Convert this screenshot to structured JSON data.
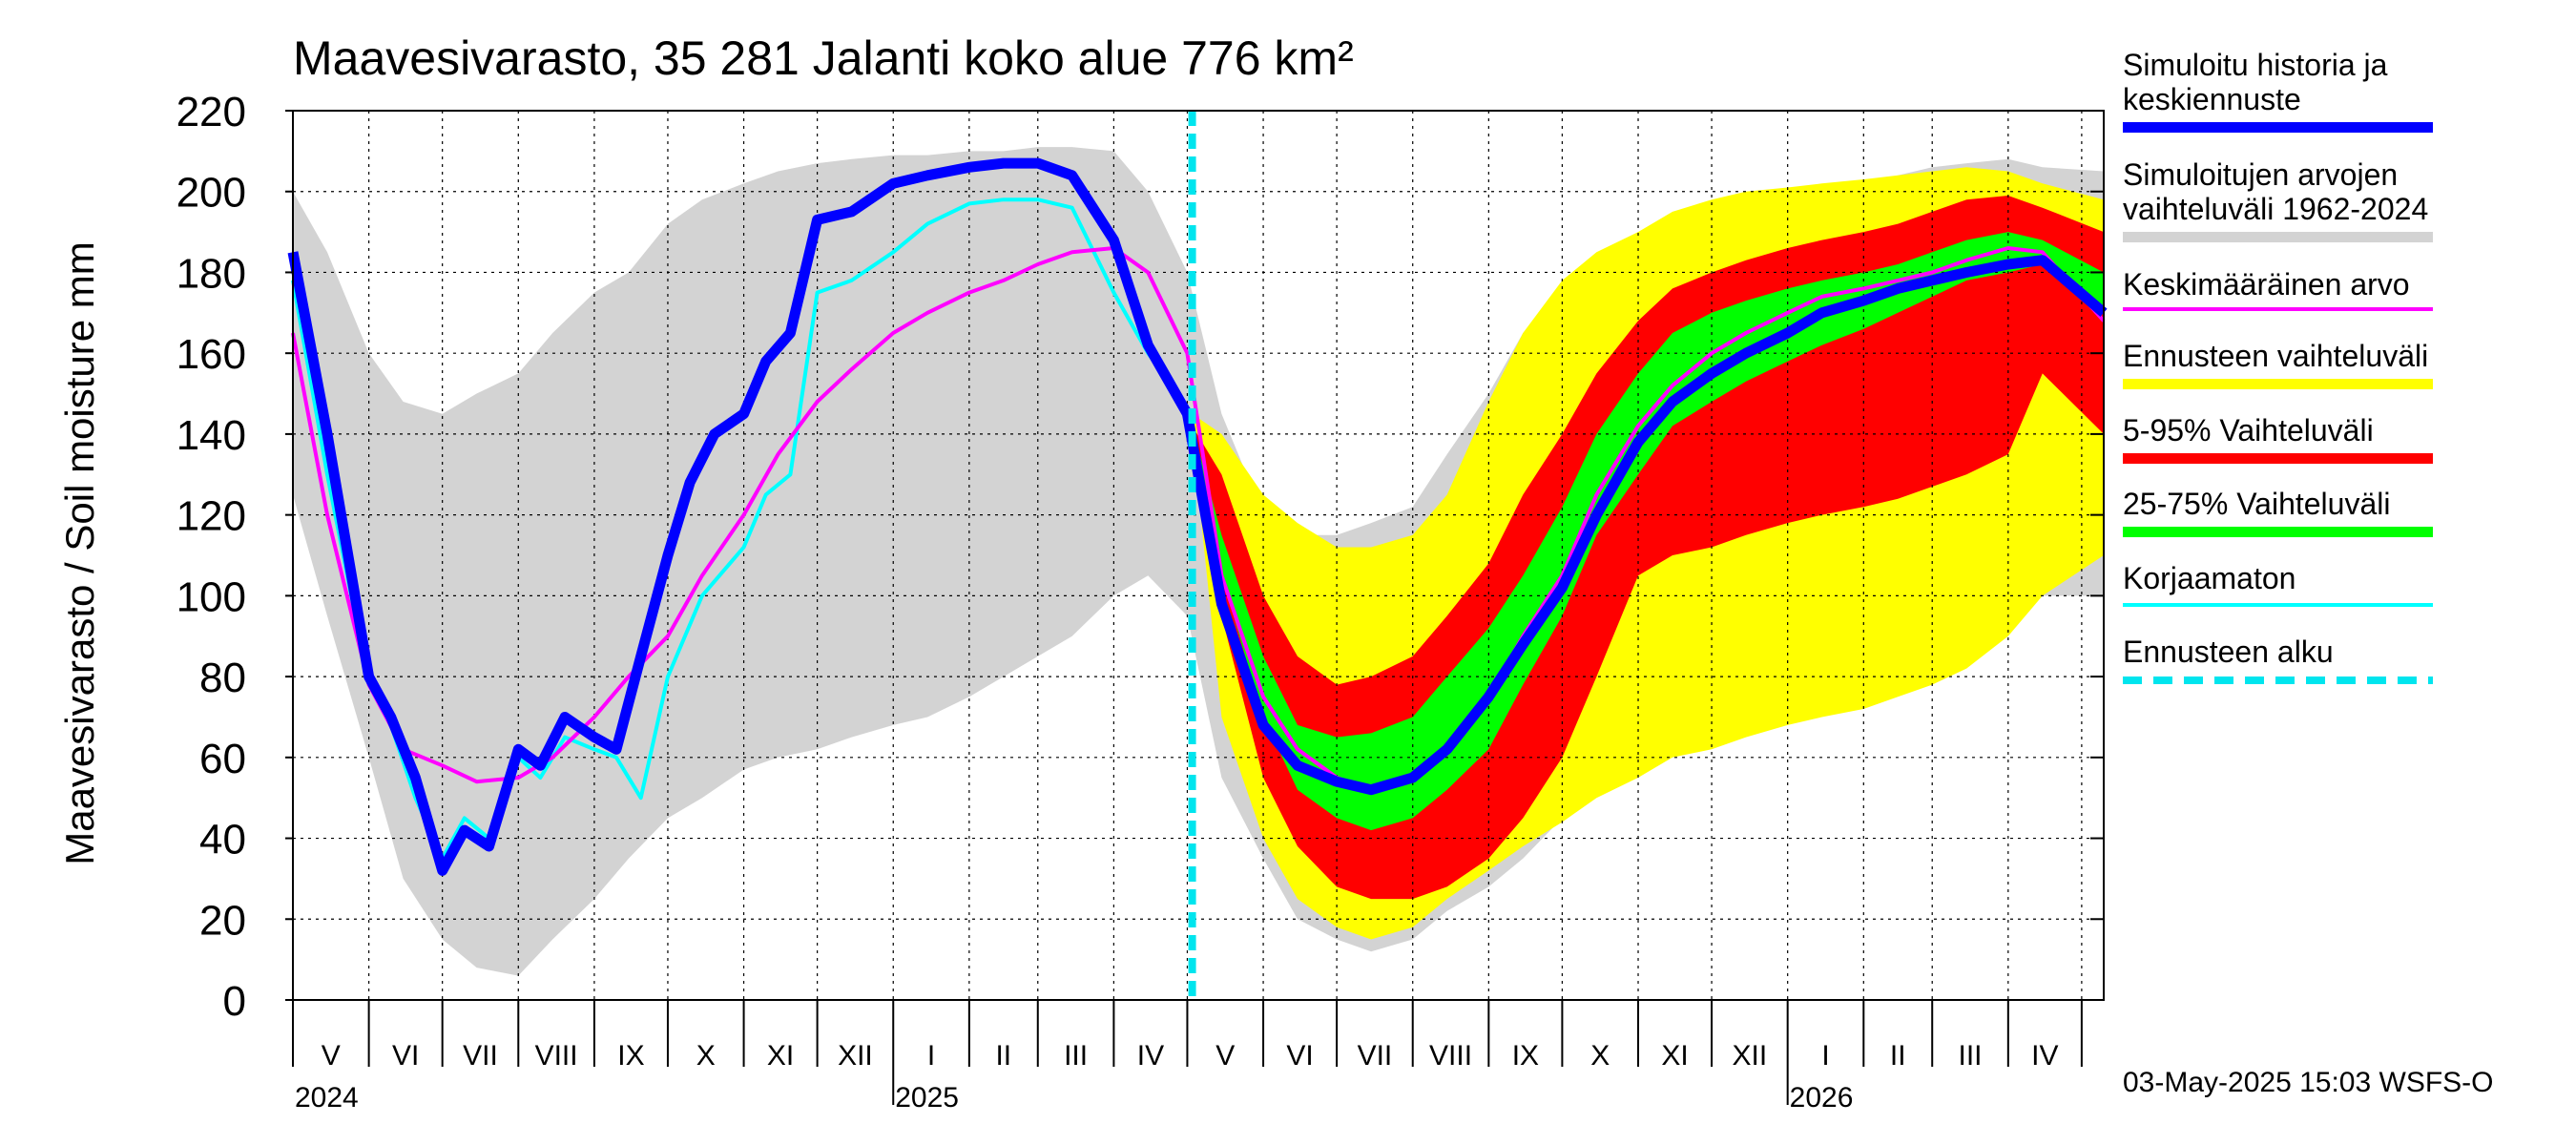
{
  "chart_data": {
    "type": "area",
    "title": "Maavesivarasto, 35 281 Jalanti koko alue 776 km²",
    "ylabel": "Maavesivarasto / Soil moisture   mm",
    "ylim": [
      0,
      220
    ],
    "yticks": [
      0,
      20,
      40,
      60,
      80,
      100,
      120,
      140,
      160,
      180,
      200,
      220
    ],
    "xlim": [
      "2024-05-01",
      "2026-05-10"
    ],
    "grid": true,
    "month_labels": [
      "V",
      "VI",
      "VII",
      "VIII",
      "IX",
      "X",
      "XI",
      "XII",
      "I",
      "II",
      "III",
      "IV",
      "V",
      "VI",
      "VII",
      "VIII",
      "IX",
      "X",
      "XI",
      "XII",
      "I",
      "II",
      "III",
      "IV"
    ],
    "year_labels": [
      "2024",
      "2025",
      "2026"
    ],
    "forecast_start": "2025-05-03",
    "series": [
      {
        "name": "Simuloitujen arvojen vaihteluväli 1962-2024",
        "kind": "band",
        "color": "#d3d3d3",
        "x": [
          "2024-05-01",
          "2024-05-15",
          "2024-06-01",
          "2024-06-15",
          "2024-07-01",
          "2024-07-15",
          "2024-08-01",
          "2024-08-15",
          "2024-09-01",
          "2024-09-15",
          "2024-10-01",
          "2024-10-15",
          "2024-11-01",
          "2024-11-15",
          "2024-12-01",
          "2024-12-15",
          "2025-01-01",
          "2025-01-15",
          "2025-02-01",
          "2025-02-15",
          "2025-03-01",
          "2025-03-15",
          "2025-04-01",
          "2025-04-15",
          "2025-05-01",
          "2025-05-15",
          "2025-06-01",
          "2025-06-15",
          "2025-07-01",
          "2025-07-15",
          "2025-08-01",
          "2025-08-15",
          "2025-09-01",
          "2025-09-15",
          "2025-10-01",
          "2025-10-15",
          "2025-11-01",
          "2025-11-15",
          "2025-12-01",
          "2025-12-15",
          "2026-01-01",
          "2026-01-15",
          "2026-02-01",
          "2026-02-15",
          "2026-03-01",
          "2026-03-15",
          "2026-04-01",
          "2026-04-15",
          "2026-05-10"
        ],
        "low": [
          125,
          95,
          60,
          30,
          15,
          8,
          6,
          15,
          25,
          35,
          45,
          50,
          57,
          60,
          62,
          65,
          68,
          70,
          75,
          80,
          85,
          90,
          100,
          105,
          95,
          55,
          35,
          20,
          15,
          12,
          15,
          22,
          28,
          35,
          45,
          55,
          65,
          70,
          74,
          77,
          80,
          82,
          85,
          88,
          92,
          95,
          100,
          100,
          100
        ],
        "high": [
          200,
          185,
          160,
          148,
          145,
          150,
          155,
          165,
          175,
          180,
          192,
          198,
          202,
          205,
          207,
          208,
          209,
          209,
          210,
          210,
          211,
          211,
          210,
          200,
          180,
          145,
          120,
          115,
          115,
          118,
          122,
          135,
          150,
          165,
          175,
          182,
          186,
          190,
          193,
          196,
          198,
          200,
          202,
          204,
          206,
          207,
          208,
          206,
          205
        ]
      },
      {
        "name": "Ennusteen vaihteluväli",
        "kind": "band",
        "color": "#ffff00",
        "x": [
          "2025-05-03",
          "2025-05-15",
          "2025-06-01",
          "2025-06-15",
          "2025-07-01",
          "2025-07-15",
          "2025-08-01",
          "2025-08-15",
          "2025-09-01",
          "2025-09-15",
          "2025-10-01",
          "2025-10-15",
          "2025-11-01",
          "2025-11-15",
          "2025-12-01",
          "2025-12-15",
          "2026-01-01",
          "2026-01-15",
          "2026-02-01",
          "2026-02-15",
          "2026-03-01",
          "2026-03-15",
          "2026-04-01",
          "2026-04-15",
          "2026-05-10"
        ],
        "low": [
          140,
          70,
          40,
          25,
          18,
          15,
          18,
          25,
          32,
          38,
          44,
          50,
          55,
          60,
          62,
          65,
          68,
          70,
          72,
          75,
          78,
          82,
          90,
          100,
          110
        ],
        "high": [
          145,
          140,
          125,
          118,
          112,
          112,
          115,
          125,
          148,
          165,
          178,
          185,
          190,
          195,
          198,
          200,
          201,
          202,
          203,
          204,
          205,
          206,
          205,
          202,
          198
        ]
      },
      {
        "name": "5-95% Vaihteluväli",
        "kind": "band",
        "color": "#ff0000",
        "x": [
          "2025-05-03",
          "2025-05-15",
          "2025-06-01",
          "2025-06-15",
          "2025-07-01",
          "2025-07-15",
          "2025-08-01",
          "2025-08-15",
          "2025-09-01",
          "2025-09-15",
          "2025-10-01",
          "2025-10-15",
          "2025-11-01",
          "2025-11-15",
          "2025-12-01",
          "2025-12-15",
          "2026-01-01",
          "2026-01-15",
          "2026-02-01",
          "2026-02-15",
          "2026-03-01",
          "2026-03-15",
          "2026-04-01",
          "2026-04-15",
          "2026-05-10"
        ],
        "low": [
          140,
          95,
          55,
          38,
          28,
          25,
          25,
          28,
          35,
          45,
          60,
          80,
          105,
          110,
          112,
          115,
          118,
          120,
          122,
          124,
          127,
          130,
          135,
          155,
          140
        ],
        "high": [
          142,
          130,
          100,
          85,
          78,
          80,
          85,
          95,
          108,
          125,
          140,
          155,
          168,
          176,
          180,
          183,
          186,
          188,
          190,
          192,
          195,
          198,
          199,
          196,
          190
        ]
      },
      {
        "name": "25-75% Vaihteluväli",
        "kind": "band",
        "color": "#00ff00",
        "x": [
          "2025-05-03",
          "2025-05-15",
          "2025-06-01",
          "2025-06-15",
          "2025-07-01",
          "2025-07-15",
          "2025-08-01",
          "2025-08-15",
          "2025-09-01",
          "2025-09-15",
          "2025-10-01",
          "2025-10-15",
          "2025-11-01",
          "2025-11-15",
          "2025-12-01",
          "2025-12-15",
          "2026-01-01",
          "2026-01-15",
          "2026-02-01",
          "2026-02-15",
          "2026-03-01",
          "2026-03-15",
          "2026-04-01",
          "2026-04-15",
          "2026-05-10"
        ],
        "low": [
          140,
          105,
          70,
          52,
          45,
          42,
          45,
          52,
          62,
          78,
          95,
          115,
          130,
          142,
          148,
          153,
          158,
          162,
          166,
          170,
          174,
          178,
          180,
          182,
          170
        ],
        "high": [
          142,
          115,
          85,
          68,
          65,
          66,
          70,
          80,
          92,
          105,
          122,
          140,
          155,
          165,
          170,
          173,
          176,
          178,
          180,
          182,
          185,
          188,
          190,
          188,
          180
        ]
      },
      {
        "name": "Korjaamaton",
        "kind": "line",
        "color": "#00ffff",
        "x": [
          "2024-05-01",
          "2024-05-15",
          "2024-06-01",
          "2024-06-10",
          "2024-06-20",
          "2024-07-01",
          "2024-07-10",
          "2024-07-20",
          "2024-08-01",
          "2024-08-10",
          "2024-08-20",
          "2024-09-01",
          "2024-09-10",
          "2024-09-20",
          "2024-10-01",
          "2024-10-15",
          "2024-11-01",
          "2024-11-10",
          "2024-11-20",
          "2024-12-01",
          "2024-12-15",
          "2025-01-01",
          "2025-01-15",
          "2025-02-01",
          "2025-02-15",
          "2025-03-01",
          "2025-03-15",
          "2025-04-01",
          "2025-04-15",
          "2025-05-03"
        ],
        "values": [
          178,
          130,
          78,
          68,
          50,
          35,
          45,
          40,
          60,
          55,
          65,
          62,
          60,
          50,
          80,
          100,
          112,
          125,
          130,
          175,
          178,
          185,
          192,
          197,
          198,
          198,
          196,
          175,
          160,
          145
        ]
      },
      {
        "name": "Keskimääräinen arvo",
        "kind": "line",
        "color": "#ff00ff",
        "x": [
          "2024-05-01",
          "2024-05-15",
          "2024-06-01",
          "2024-06-15",
          "2024-07-01",
          "2024-07-15",
          "2024-08-01",
          "2024-08-15",
          "2024-09-01",
          "2024-09-15",
          "2024-10-01",
          "2024-10-15",
          "2024-11-01",
          "2024-11-15",
          "2024-12-01",
          "2024-12-15",
          "2025-01-01",
          "2025-01-15",
          "2025-02-01",
          "2025-02-15",
          "2025-03-01",
          "2025-03-15",
          "2025-04-01",
          "2025-04-15",
          "2025-05-01",
          "2025-05-15",
          "2025-06-01",
          "2025-06-15",
          "2025-07-01",
          "2025-07-15",
          "2025-08-01",
          "2025-08-15",
          "2025-09-01",
          "2025-09-15",
          "2025-10-01",
          "2025-10-15",
          "2025-11-01",
          "2025-11-15",
          "2025-12-01",
          "2025-12-15",
          "2026-01-01",
          "2026-01-15",
          "2026-02-01",
          "2026-02-15",
          "2026-03-01",
          "2026-03-15",
          "2026-04-01",
          "2026-04-15",
          "2026-05-10"
        ],
        "values": [
          165,
          120,
          78,
          62,
          58,
          54,
          55,
          60,
          70,
          80,
          90,
          105,
          120,
          135,
          148,
          156,
          165,
          170,
          175,
          178,
          182,
          185,
          186,
          180,
          160,
          105,
          75,
          62,
          55,
          52,
          55,
          62,
          75,
          90,
          105,
          125,
          142,
          152,
          160,
          165,
          170,
          174,
          176,
          178,
          180,
          183,
          186,
          185,
          168
        ]
      },
      {
        "name": "Simuloitu historia ja keskiennuste",
        "kind": "line",
        "color": "#0000ff",
        "x": [
          "2024-05-01",
          "2024-05-15",
          "2024-06-01",
          "2024-06-10",
          "2024-06-20",
          "2024-07-01",
          "2024-07-10",
          "2024-07-20",
          "2024-08-01",
          "2024-08-10",
          "2024-08-20",
          "2024-09-01",
          "2024-09-10",
          "2024-09-20",
          "2024-10-01",
          "2024-10-10",
          "2024-10-20",
          "2024-11-01",
          "2024-11-10",
          "2024-11-20",
          "2024-12-01",
          "2024-12-15",
          "2025-01-01",
          "2025-01-15",
          "2025-02-01",
          "2025-02-15",
          "2025-03-01",
          "2025-03-15",
          "2025-04-01",
          "2025-04-15",
          "2025-05-01",
          "2025-05-15",
          "2025-06-01",
          "2025-06-15",
          "2025-07-01",
          "2025-07-15",
          "2025-08-01",
          "2025-08-15",
          "2025-09-01",
          "2025-09-15",
          "2025-10-01",
          "2025-10-15",
          "2025-11-01",
          "2025-11-15",
          "2025-12-01",
          "2025-12-15",
          "2026-01-01",
          "2026-01-15",
          "2026-02-01",
          "2026-02-15",
          "2026-03-01",
          "2026-03-15",
          "2026-04-01",
          "2026-04-15",
          "2026-05-10"
        ],
        "values": [
          185,
          140,
          80,
          70,
          55,
          32,
          42,
          38,
          62,
          58,
          70,
          65,
          62,
          85,
          110,
          128,
          140,
          145,
          158,
          165,
          193,
          195,
          202,
          204,
          206,
          207,
          207,
          204,
          188,
          162,
          145,
          98,
          68,
          58,
          54,
          52,
          55,
          62,
          75,
          88,
          102,
          120,
          138,
          148,
          155,
          160,
          165,
          170,
          173,
          176,
          178,
          180,
          182,
          183,
          170
        ]
      }
    ],
    "legend": [
      {
        "label": "Simuloitu historia ja\nkeskiennuste",
        "color": "#0000ff",
        "style": "solid",
        "thickness": 11
      },
      {
        "label": "Simuloitujen arvojen\nvaihteluväli 1962-2024",
        "color": "#d3d3d3",
        "style": "solid",
        "thickness": 11
      },
      {
        "label": "Keskimääräinen arvo",
        "color": "#ff00ff",
        "style": "solid",
        "thickness": 4
      },
      {
        "label": "Ennusteen vaihteluväli",
        "color": "#ffff00",
        "style": "solid",
        "thickness": 11
      },
      {
        "label": "5-95% Vaihteluväli",
        "color": "#ff0000",
        "style": "solid",
        "thickness": 11
      },
      {
        "label": "25-75% Vaihteluväli",
        "color": "#00ff00",
        "style": "solid",
        "thickness": 11
      },
      {
        "label": "Korjaamaton",
        "color": "#00ffff",
        "style": "solid",
        "thickness": 4
      },
      {
        "label": "Ennusteen alku",
        "color": "#00e5ee",
        "style": "dashed",
        "thickness": 8
      }
    ],
    "footer": "03-May-2025 15:03 WSFS-O"
  }
}
